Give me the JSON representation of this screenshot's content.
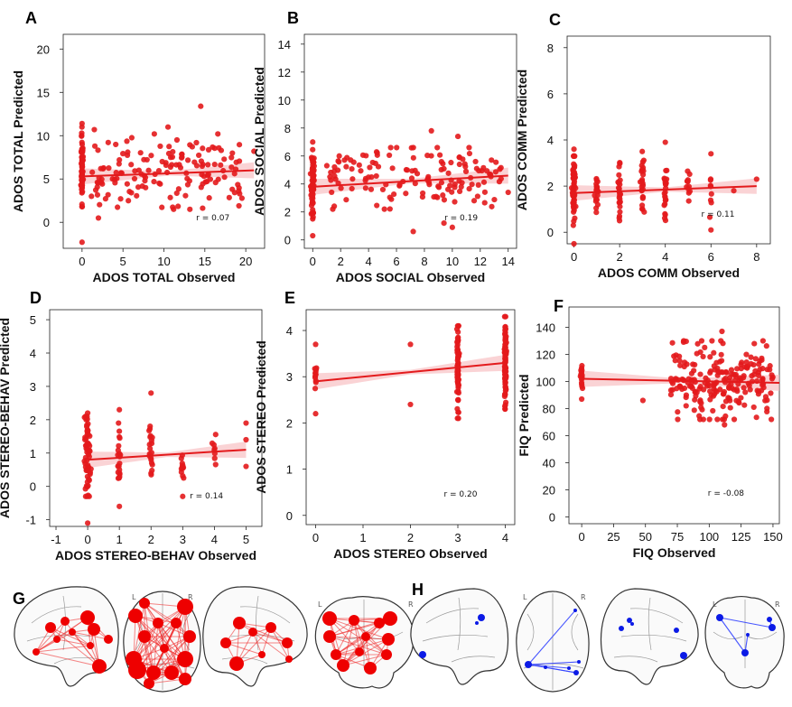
{
  "colors": {
    "point": "#e31a1c",
    "line": "#e31a1c",
    "band": "#f7b6b9",
    "node_red": "#ee0000",
    "edge_red": "#ee2222",
    "node_blue": "#0b1ae6",
    "edge_blue": "#3344ff"
  },
  "brain_panels": [
    {
      "letter": "G",
      "color": "red"
    },
    {
      "letter": "H",
      "color": "blue"
    }
  ],
  "brain_hemisphere_labels": [
    "L",
    "R"
  ],
  "chart_data": [
    {
      "letter": "A",
      "type": "scatter",
      "xlabel": "ADOS TOTAL Observed",
      "ylabel": "ADOS TOTAL Predicted",
      "xlim": [
        -2.3,
        22.3
      ],
      "ylim": [
        -3,
        21.7
      ],
      "xticks": [
        0,
        5,
        10,
        15,
        20
      ],
      "yticks": [
        0,
        5,
        10,
        15,
        20
      ],
      "annotation": "r = 0.07",
      "fit": {
        "x": [
          0,
          21
        ],
        "y": [
          5.3,
          6.0
        ]
      },
      "clusters": [
        {
          "x": 0,
          "jitter": 0.05,
          "ymin": 1.8,
          "ymax": 11.0,
          "n": 70
        },
        {
          "x_min": 1,
          "x_max": 20,
          "ymin": 1.5,
          "ymax": 10.2,
          "n": 150
        }
      ],
      "outliers": [
        [
          0,
          -2.3
        ],
        [
          0,
          11.4
        ],
        [
          14.5,
          13.4
        ],
        [
          2,
          0.5
        ],
        [
          1.5,
          10.7
        ],
        [
          10.5,
          11.0
        ],
        [
          21,
          8.2
        ],
        [
          17,
          8.3
        ]
      ]
    },
    {
      "letter": "B",
      "type": "scatter",
      "xlabel": "ADOS SOCIAL Observed",
      "ylabel": "ADOS SOCIAL Predicted",
      "xlim": [
        -0.6,
        14.6
      ],
      "ylim": [
        -0.6,
        14.7
      ],
      "xticks": [
        0,
        2,
        4,
        6,
        8,
        10,
        12,
        14
      ],
      "yticks": [
        0,
        2,
        4,
        6,
        8,
        10,
        12,
        14
      ],
      "annotation": "r = 0.19",
      "fit": {
        "x": [
          0,
          14
        ],
        "y": [
          3.8,
          4.6
        ]
      },
      "clusters": [
        {
          "x": 0,
          "jitter": 0.05,
          "ymin": 1.5,
          "ymax": 6.6,
          "n": 70
        },
        {
          "x_min": 1,
          "x_max": 13.5,
          "ymin": 2.2,
          "ymax": 6.6,
          "n": 140
        }
      ],
      "outliers": [
        [
          0,
          0.3
        ],
        [
          0,
          7.0
        ],
        [
          8.5,
          7.8
        ],
        [
          10.4,
          7.4
        ],
        [
          11.2,
          6.6
        ],
        [
          10,
          0.9
        ],
        [
          7.2,
          0.6
        ],
        [
          14,
          3.4
        ],
        [
          1.9,
          6.0
        ],
        [
          9.4,
          1.2
        ]
      ]
    },
    {
      "letter": "C",
      "type": "scatter",
      "xlabel": "ADOS COMM Observed",
      "ylabel": "ADOS COMM Predicted",
      "xlim": [
        -0.3,
        8.6
      ],
      "ylim": [
        -0.5,
        8.5
      ],
      "xticks": [
        0,
        2,
        4,
        6,
        8
      ],
      "yticks": [
        0,
        2,
        4,
        6,
        8
      ],
      "annotation": "r = 0.11",
      "fit": {
        "x": [
          0,
          8
        ],
        "y": [
          1.7,
          2.0
        ]
      },
      "clusters": [
        {
          "x": 0,
          "jitter": 0.03,
          "ymin": 0.3,
          "ymax": 3.3,
          "n": 60
        },
        {
          "x": 1,
          "jitter": 0.03,
          "ymin": 0.6,
          "ymax": 2.8,
          "n": 20
        },
        {
          "x": 2,
          "jitter": 0.03,
          "ymin": 0.5,
          "ymax": 3.3,
          "n": 25
        },
        {
          "x": 3,
          "jitter": 0.03,
          "ymin": 0.6,
          "ymax": 3.5,
          "n": 25
        },
        {
          "x": 4,
          "jitter": 0.03,
          "ymin": 0.3,
          "ymax": 3.0,
          "n": 25
        },
        {
          "x": 5,
          "jitter": 0.03,
          "ymin": 1.3,
          "ymax": 2.7,
          "n": 12
        },
        {
          "x": 6,
          "jitter": 0.03,
          "ymin": 0.3,
          "ymax": 2.6,
          "n": 8
        }
      ],
      "outliers": [
        [
          0,
          -0.5
        ],
        [
          0,
          3.6
        ],
        [
          4,
          3.9
        ],
        [
          6,
          3.4
        ],
        [
          7,
          1.8
        ],
        [
          8,
          2.3
        ],
        [
          6,
          0.1
        ]
      ]
    },
    {
      "letter": "D",
      "type": "scatter",
      "xlabel": "ADOS STEREO-BEHAV Observed",
      "ylabel": "ADOS STEREO-BEHAV Predicted",
      "xlim": [
        -1.2,
        5.5
      ],
      "ylim": [
        -1.2,
        5.3
      ],
      "xticks": [
        -1,
        0,
        1,
        2,
        3,
        4,
        5
      ],
      "yticks": [
        -1,
        0,
        1,
        2,
        3,
        4,
        5
      ],
      "annotation": "r = 0.14",
      "fit": {
        "x": [
          0,
          5
        ],
        "y": [
          0.8,
          1.1
        ]
      },
      "clusters": [
        {
          "x": 0,
          "jitter": 0.05,
          "ymin": -0.3,
          "ymax": 2.1,
          "n": 60
        },
        {
          "x": 1,
          "jitter": 0.03,
          "ymin": -0.1,
          "ymax": 1.9,
          "n": 20
        },
        {
          "x": 2,
          "jitter": 0.03,
          "ymin": 0.1,
          "ymax": 2.0,
          "n": 20
        },
        {
          "x": 3,
          "jitter": 0.03,
          "ymin": -0.1,
          "ymax": 1.5,
          "n": 12
        },
        {
          "x": 4,
          "jitter": 0.03,
          "ymin": 0.4,
          "ymax": 1.6,
          "n": 8
        }
      ],
      "outliers": [
        [
          0,
          -1.1
        ],
        [
          2,
          2.8
        ],
        [
          1,
          2.3
        ],
        [
          1,
          -0.6
        ],
        [
          5,
          1.9
        ],
        [
          5,
          0.6
        ],
        [
          5,
          1.4
        ],
        [
          3,
          -0.3
        ],
        [
          0,
          2.2
        ]
      ]
    },
    {
      "letter": "E",
      "type": "scatter",
      "xlabel": "ADOS STEREO Observed",
      "ylabel": "ADOS STEREO Predicted",
      "xlim": [
        -0.2,
        4.2
      ],
      "ylim": [
        -0.2,
        4.45
      ],
      "xticks": [
        0,
        1,
        2,
        3,
        4
      ],
      "yticks": [
        0,
        1,
        2,
        3,
        4
      ],
      "annotation": "r = 0.20",
      "fit": {
        "x": [
          0,
          4
        ],
        "y": [
          2.9,
          3.3
        ]
      },
      "clusters": [
        {
          "x": 0,
          "jitter": 0.01,
          "ymin": 2.7,
          "ymax": 3.3,
          "n": 12
        },
        {
          "x": 3,
          "jitter": 0.01,
          "ymin": 2.1,
          "ymax": 4.1,
          "n": 70
        },
        {
          "x": 4,
          "jitter": 0.01,
          "ymin": 2.3,
          "ymax": 4.3,
          "n": 80
        }
      ],
      "outliers": [
        [
          0,
          2.2
        ],
        [
          0,
          3.7
        ],
        [
          2,
          3.7
        ],
        [
          2,
          2.4
        ]
      ]
    },
    {
      "letter": "F",
      "type": "scatter",
      "xlabel": "FIQ Observed",
      "ylabel": "FIQ Predicted",
      "xlim": [
        -10,
        155
      ],
      "ylim": [
        -5,
        155
      ],
      "xticks": [
        0,
        25,
        50,
        75,
        100,
        125,
        150
      ],
      "yticks": [
        0,
        20,
        40,
        60,
        80,
        100,
        120,
        140
      ],
      "annotation": "r = -0.08",
      "fit": {
        "x": [
          0,
          155
        ],
        "y": [
          102,
          99
        ]
      },
      "clusters": [
        {
          "x": 0,
          "jitter": 0.5,
          "ymin": 95,
          "ymax": 112,
          "n": 16
        },
        {
          "x_min": 70,
          "x_max": 150,
          "ymin": 72,
          "ymax": 130,
          "n": 220
        }
      ],
      "outliers": [
        [
          0,
          87
        ],
        [
          48,
          86
        ],
        [
          110,
          137
        ],
        [
          112,
          68
        ]
      ]
    }
  ]
}
